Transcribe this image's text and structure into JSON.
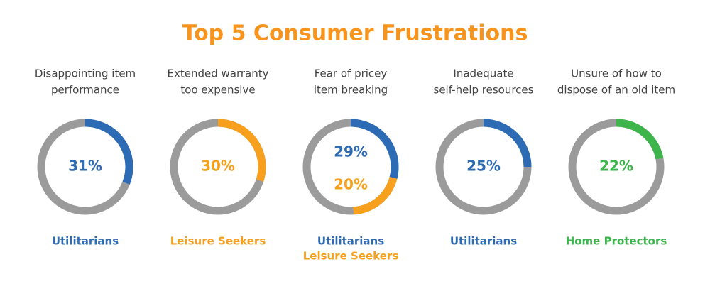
{
  "title": "Top 5 Consumer Frustrations",
  "track_color": "#9b9b9b",
  "chart_data": [
    {
      "type": "donut",
      "title": [
        "Disappointing item",
        "performance"
      ],
      "series": [
        {
          "name": "Utilitarians",
          "color": "#2e6bb5",
          "values": [
            31
          ],
          "value_labels": [
            "31%"
          ]
        }
      ]
    },
    {
      "type": "donut",
      "title": [
        "Extended warranty",
        "too expensive"
      ],
      "series": [
        {
          "name": "Leisure Seekers",
          "color": "#f7a01d",
          "values": [
            30
          ],
          "value_labels": [
            "30%"
          ]
        }
      ]
    },
    {
      "type": "donut",
      "title": [
        "Fear of pricey",
        "item breaking"
      ],
      "series": [
        {
          "name": "Utilitarians",
          "color": "#2e6bb5",
          "values": [
            29
          ],
          "value_labels": [
            "29%"
          ]
        },
        {
          "name": "Leisure Seekers",
          "color": "#f7a01d",
          "values": [
            20
          ],
          "value_labels": [
            "20%"
          ]
        }
      ]
    },
    {
      "type": "donut",
      "title": [
        "Inadequate",
        "self-help resources"
      ],
      "series": [
        {
          "name": "Utilitarians",
          "color": "#2e6bb5",
          "values": [
            25
          ],
          "value_labels": [
            "25%"
          ]
        }
      ]
    },
    {
      "type": "donut",
      "title": [
        "Unsure of how to",
        "dispose of an old item"
      ],
      "series": [
        {
          "name": "Home Protectors",
          "color": "#3db54a",
          "values": [
            22
          ],
          "value_labels": [
            "22%"
          ]
        }
      ]
    }
  ]
}
